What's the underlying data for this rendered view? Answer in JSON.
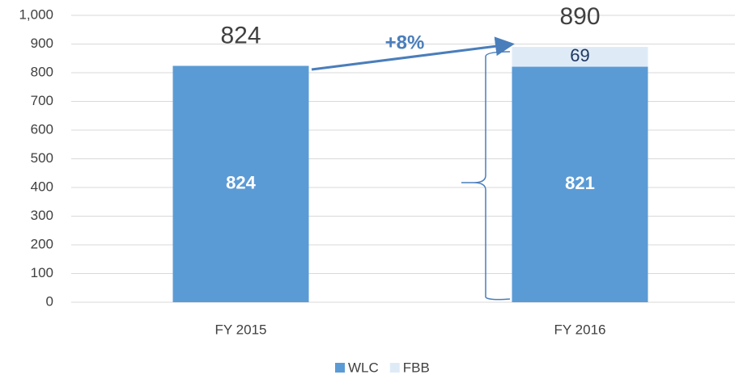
{
  "chart_data": {
    "type": "stacked_bar",
    "categories": [
      "FY 2015",
      "FY 2016"
    ],
    "series": [
      {
        "name": "WLC",
        "color": "#5b9bd5",
        "values": [
          824,
          821
        ]
      },
      {
        "name": "FBB",
        "color": "#deebf7",
        "values": [
          null,
          69
        ]
      }
    ],
    "totals": [
      824,
      890
    ],
    "annotation": "+8%",
    "ylim": [
      0,
      1000
    ],
    "yticks": [
      0,
      100,
      200,
      300,
      400,
      500,
      600,
      700,
      800,
      900,
      {
        "value": 1000,
        "label": "1,000"
      }
    ],
    "grid": true,
    "legend": "bottom"
  }
}
